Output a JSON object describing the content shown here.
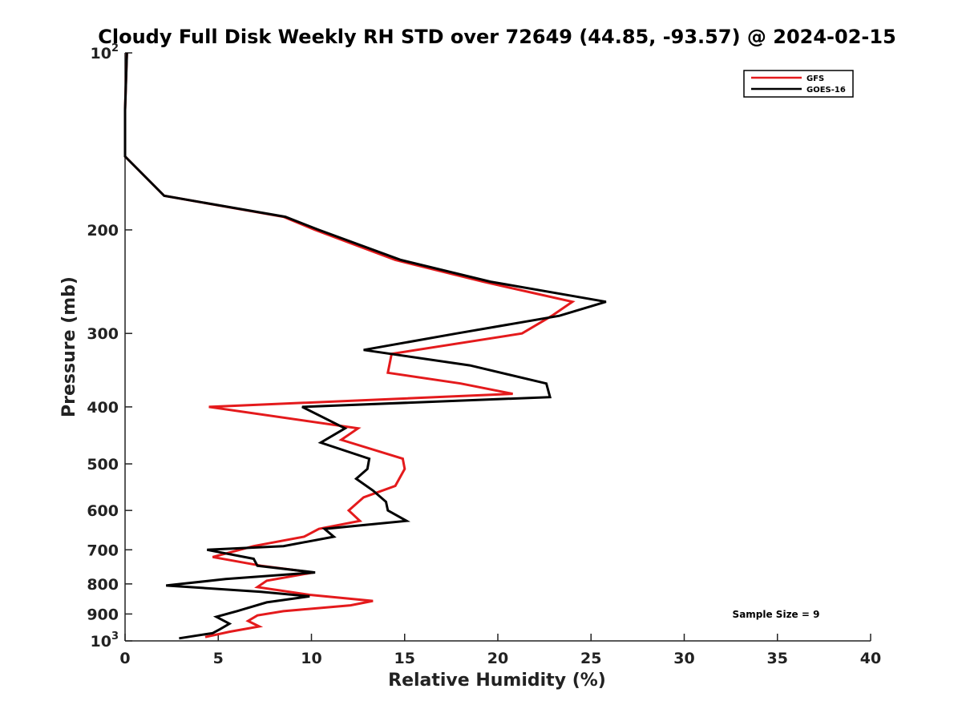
{
  "chart_data": {
    "type": "line",
    "title": "Cloudy Full Disk Weekly RH STD over 72649 (44.85, -93.57) @ 2024-02-15",
    "xlabel": "Relative Humidity (%)",
    "ylabel": "Pressure (mb)",
    "xlim": [
      0,
      40
    ],
    "ylim": [
      100,
      1000
    ],
    "y_scale": "log",
    "y_reversed": true,
    "x_ticks": [
      "0",
      "5",
      "10",
      "15",
      "20",
      "25",
      "30",
      "35",
      "40"
    ],
    "x_tick_values": [
      0,
      5,
      10,
      15,
      20,
      25,
      30,
      35,
      40
    ],
    "y_tick_values": [
      100,
      200,
      300,
      400,
      500,
      600,
      700,
      800,
      900,
      1000
    ],
    "y_ticks": [
      {
        "base": "10",
        "exp": "2"
      },
      {
        "base": "200",
        "exp": ""
      },
      {
        "base": "300",
        "exp": ""
      },
      {
        "base": "400",
        "exp": ""
      },
      {
        "base": "500",
        "exp": ""
      },
      {
        "base": "600",
        "exp": ""
      },
      {
        "base": "700",
        "exp": ""
      },
      {
        "base": "800",
        "exp": ""
      },
      {
        "base": "900",
        "exp": ""
      },
      {
        "base": "10",
        "exp": "3"
      }
    ],
    "legend_position": "top-right",
    "annotation": "Sample Size = 9",
    "series": [
      {
        "name": "GFS",
        "color": "#e41a1c",
        "points": [
          [
            0.1,
            100
          ],
          [
            0.0,
            125
          ],
          [
            0.0,
            150
          ],
          [
            2.1,
            175
          ],
          [
            8.5,
            190
          ],
          [
            10.2,
            200
          ],
          [
            14.5,
            225
          ],
          [
            19.2,
            245
          ],
          [
            24.0,
            265
          ],
          [
            22.9,
            280
          ],
          [
            21.3,
            300
          ],
          [
            14.3,
            325
          ],
          [
            14.1,
            350
          ],
          [
            18.0,
            365
          ],
          [
            20.8,
            380
          ],
          [
            4.5,
            400
          ],
          [
            12.5,
            435
          ],
          [
            11.6,
            455
          ],
          [
            14.9,
            490
          ],
          [
            15.0,
            510
          ],
          [
            14.5,
            545
          ],
          [
            12.8,
            570
          ],
          [
            12.0,
            600
          ],
          [
            12.6,
            625
          ],
          [
            10.4,
            645
          ],
          [
            9.6,
            665
          ],
          [
            6.9,
            690
          ],
          [
            4.7,
            720
          ],
          [
            7.3,
            745
          ],
          [
            10.1,
            765
          ],
          [
            7.6,
            790
          ],
          [
            7.1,
            810
          ],
          [
            9.9,
            835
          ],
          [
            13.3,
            855
          ],
          [
            12.1,
            870
          ],
          [
            8.5,
            890
          ],
          [
            7.1,
            905
          ],
          [
            6.6,
            925
          ],
          [
            7.2,
            945
          ],
          [
            5.6,
            965
          ],
          [
            4.3,
            985
          ]
        ]
      },
      {
        "name": "GOES-16",
        "color": "#000000",
        "points": [
          [
            0.1,
            100
          ],
          [
            0.0,
            125
          ],
          [
            0.0,
            150
          ],
          [
            2.1,
            175
          ],
          [
            8.6,
            190
          ],
          [
            10.4,
            200
          ],
          [
            14.8,
            225
          ],
          [
            19.6,
            245
          ],
          [
            25.8,
            265
          ],
          [
            23.3,
            280
          ],
          [
            17.8,
            300
          ],
          [
            12.8,
            320
          ],
          [
            18.5,
            340
          ],
          [
            22.6,
            365
          ],
          [
            22.8,
            385
          ],
          [
            9.5,
            400
          ],
          [
            11.8,
            435
          ],
          [
            10.5,
            460
          ],
          [
            13.1,
            490
          ],
          [
            13.0,
            510
          ],
          [
            12.4,
            530
          ],
          [
            13.3,
            555
          ],
          [
            14.0,
            580
          ],
          [
            14.1,
            600
          ],
          [
            15.1,
            625
          ],
          [
            10.7,
            645
          ],
          [
            11.2,
            665
          ],
          [
            8.5,
            690
          ],
          [
            4.4,
            700
          ],
          [
            6.9,
            725
          ],
          [
            7.1,
            745
          ],
          [
            10.2,
            765
          ],
          [
            5.4,
            785
          ],
          [
            2.2,
            805
          ],
          [
            7.3,
            825
          ],
          [
            9.9,
            840
          ],
          [
            7.6,
            860
          ],
          [
            6.0,
            890
          ],
          [
            4.9,
            910
          ],
          [
            5.6,
            935
          ],
          [
            5.1,
            955
          ],
          [
            4.7,
            970
          ],
          [
            2.9,
            990
          ]
        ]
      }
    ]
  }
}
